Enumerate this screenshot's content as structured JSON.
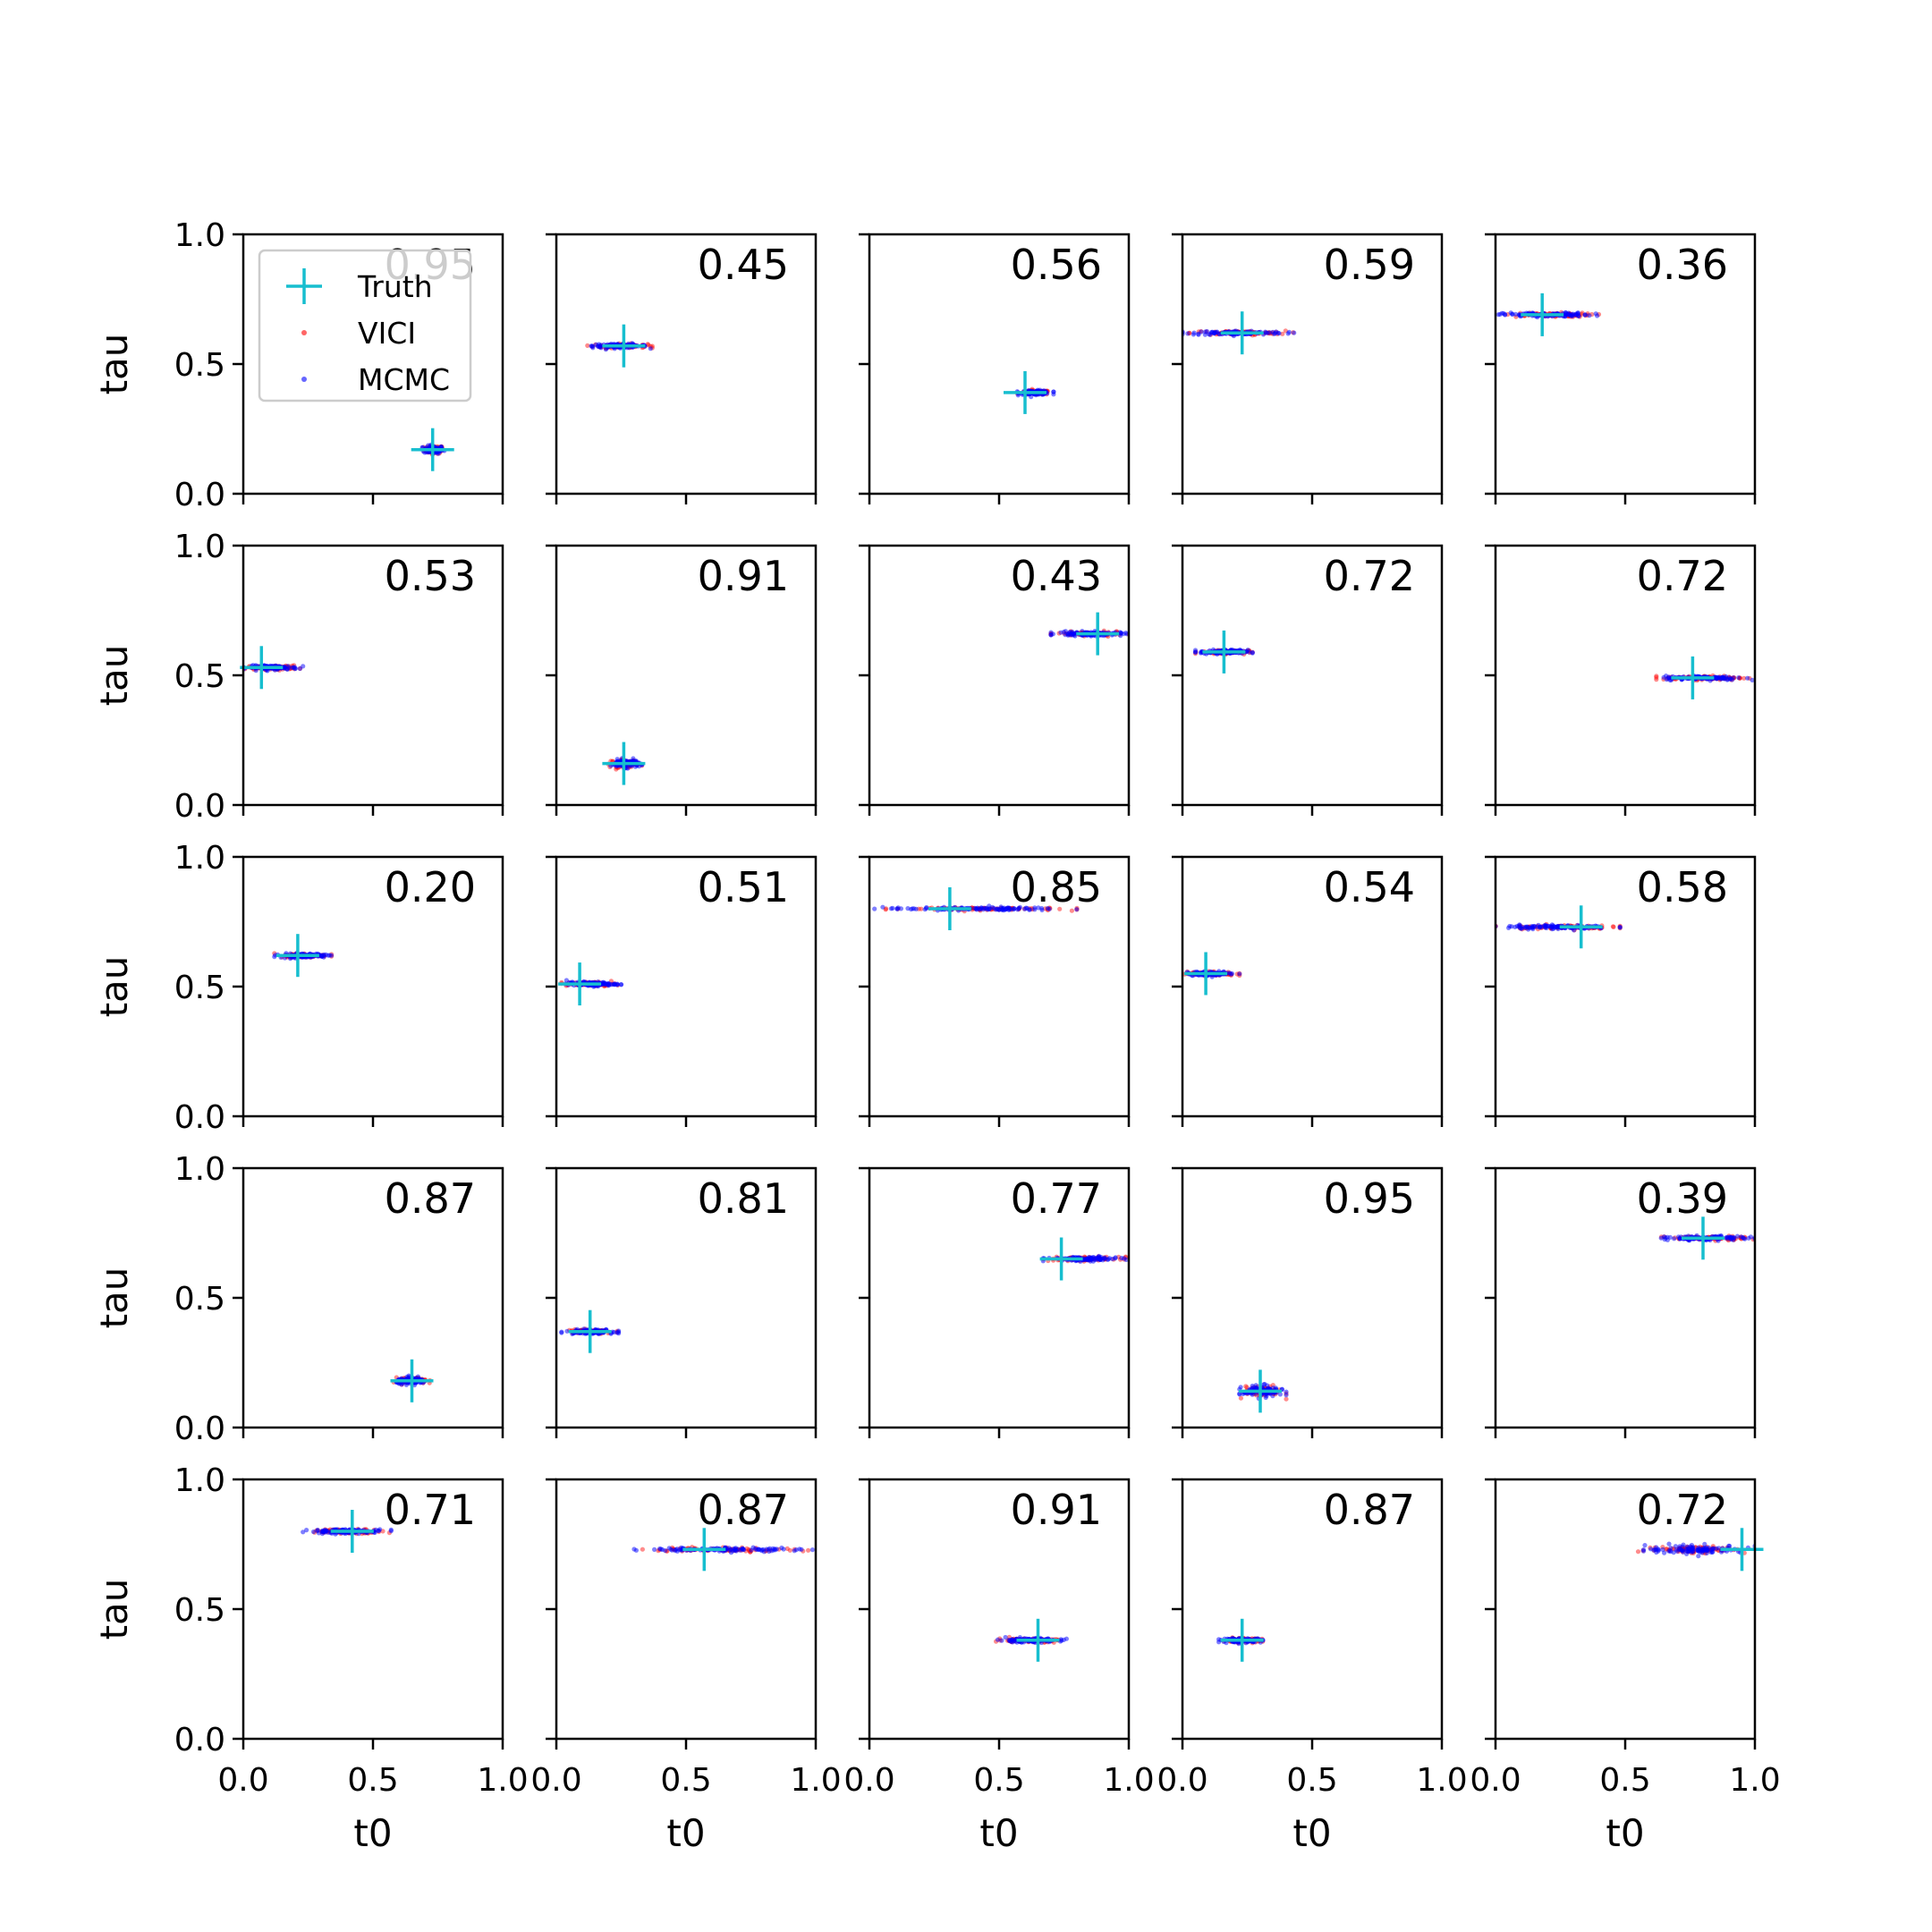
{
  "colors": {
    "truth": "#17becf",
    "vici": "#ff0000",
    "mcmc": "#0000ff"
  },
  "legend": {
    "placement": "upper-left of first panel",
    "entries": [
      {
        "label": "Truth",
        "marker": "plus",
        "color": "#17becf"
      },
      {
        "label": "VICI",
        "marker": "dot",
        "color": "#ff0000"
      },
      {
        "label": "MCMC",
        "marker": "dot",
        "color": "#0000ff"
      }
    ]
  },
  "chart_data": {
    "type": "scatter",
    "layout": "5x5 grid of panels",
    "xlabel": "t0",
    "ylabel": "tau",
    "xlim": [
      0,
      1
    ],
    "ylim": [
      0,
      1
    ],
    "xticks": [
      "0.0",
      "0.5",
      "1.0"
    ],
    "yticks": [
      "0.0",
      "0.5",
      "1.0"
    ],
    "grid": false,
    "panels": [
      {
        "score": "0.95",
        "truth": [
          0.73,
          0.17
        ],
        "t0_range": [
          0.69,
          0.78
        ],
        "tau_spread": 0.015
      },
      {
        "score": "0.45",
        "truth": [
          0.26,
          0.57
        ],
        "t0_range": [
          0.12,
          0.37
        ],
        "tau_spread": 0.008
      },
      {
        "score": "0.56",
        "truth": [
          0.6,
          0.39
        ],
        "t0_range": [
          0.57,
          0.71
        ],
        "tau_spread": 0.008
      },
      {
        "score": "0.59",
        "truth": [
          0.23,
          0.62
        ],
        "t0_range": [
          0.0,
          0.43
        ],
        "tau_spread": 0.008
      },
      {
        "score": "0.36",
        "truth": [
          0.18,
          0.69
        ],
        "t0_range": [
          0.0,
          0.4
        ],
        "tau_spread": 0.008
      },
      {
        "score": "0.53",
        "truth": [
          0.07,
          0.53
        ],
        "t0_range": [
          0.0,
          0.23
        ],
        "tau_spread": 0.008
      },
      {
        "score": "0.91",
        "truth": [
          0.26,
          0.16
        ],
        "t0_range": [
          0.2,
          0.33
        ],
        "tau_spread": 0.015
      },
      {
        "score": "0.43",
        "truth": [
          0.88,
          0.66
        ],
        "t0_range": [
          0.7,
          1.0
        ],
        "tau_spread": 0.008
      },
      {
        "score": "0.72",
        "truth": [
          0.16,
          0.59
        ],
        "t0_range": [
          0.05,
          0.27
        ],
        "tau_spread": 0.008
      },
      {
        "score": "0.72",
        "truth": [
          0.76,
          0.49
        ],
        "t0_range": [
          0.62,
          0.99
        ],
        "tau_spread": 0.008
      },
      {
        "score": "0.20",
        "truth": [
          0.21,
          0.62
        ],
        "t0_range": [
          0.12,
          0.34
        ],
        "tau_spread": 0.008
      },
      {
        "score": "0.51",
        "truth": [
          0.09,
          0.51
        ],
        "t0_range": [
          0.02,
          0.25
        ],
        "tau_spread": 0.008
      },
      {
        "score": "0.85",
        "truth": [
          0.31,
          0.8
        ],
        "t0_range": [
          0.0,
          0.8
        ],
        "tau_spread": 0.006
      },
      {
        "score": "0.54",
        "truth": [
          0.09,
          0.55
        ],
        "t0_range": [
          0.0,
          0.22
        ],
        "tau_spread": 0.008
      },
      {
        "score": "0.58",
        "truth": [
          0.33,
          0.73
        ],
        "t0_range": [
          0.0,
          0.48
        ],
        "tau_spread": 0.008
      },
      {
        "score": "0.87",
        "truth": [
          0.65,
          0.18
        ],
        "t0_range": [
          0.58,
          0.72
        ],
        "tau_spread": 0.012
      },
      {
        "score": "0.81",
        "truth": [
          0.13,
          0.37
        ],
        "t0_range": [
          0.02,
          0.24
        ],
        "tau_spread": 0.008
      },
      {
        "score": "0.77",
        "truth": [
          0.74,
          0.65
        ],
        "t0_range": [
          0.67,
          0.99
        ],
        "tau_spread": 0.008
      },
      {
        "score": "0.95",
        "truth": [
          0.3,
          0.14
        ],
        "t0_range": [
          0.22,
          0.4
        ],
        "tau_spread": 0.02
      },
      {
        "score": "0.39",
        "truth": [
          0.8,
          0.73
        ],
        "t0_range": [
          0.63,
          1.0
        ],
        "tau_spread": 0.008
      },
      {
        "score": "0.71",
        "truth": [
          0.42,
          0.8
        ],
        "t0_range": [
          0.23,
          0.57
        ],
        "tau_spread": 0.008
      },
      {
        "score": "0.87",
        "truth": [
          0.57,
          0.73
        ],
        "t0_range": [
          0.3,
          0.99
        ],
        "tau_spread": 0.008
      },
      {
        "score": "0.91",
        "truth": [
          0.65,
          0.38
        ],
        "t0_range": [
          0.47,
          0.76
        ],
        "tau_spread": 0.008
      },
      {
        "score": "0.87",
        "truth": [
          0.23,
          0.38
        ],
        "t0_range": [
          0.14,
          0.32
        ],
        "tau_spread": 0.008
      },
      {
        "score": "0.72",
        "truth": [
          0.95,
          0.73
        ],
        "t0_range": [
          0.55,
          1.0
        ],
        "tau_spread": 0.015
      }
    ]
  }
}
